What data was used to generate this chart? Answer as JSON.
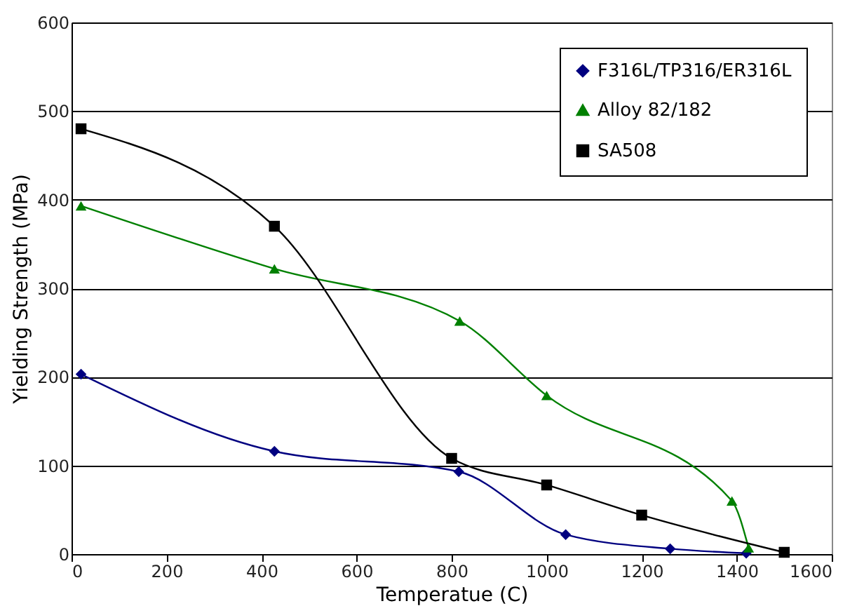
{
  "chart_data": {
    "type": "line",
    "xlabel": "Temperatue (C)",
    "ylabel": "Yielding Strength (MPa)",
    "xlim": [
      0,
      1600
    ],
    "xticks": [
      0,
      200,
      400,
      600,
      800,
      1000,
      1200,
      1400,
      1600
    ],
    "ylim": [
      0,
      600
    ],
    "yticks": [
      0,
      100,
      200,
      300,
      400,
      500,
      600
    ],
    "grid": "y",
    "legend": "top right",
    "line_style": "solid",
    "series": [
      {
        "name": "F316L/TP316/ER316L",
        "color": "#000080",
        "marker": "diamond",
        "x": [
          20,
          427,
          815,
          1040,
          1260,
          1420
        ],
        "values": [
          203,
          116,
          93,
          22,
          6,
          1
        ]
      },
      {
        "name": "Alloy 82/182",
        "color": "#008000",
        "marker": "triangle",
        "x": [
          20,
          427,
          817,
          1000,
          1390,
          1425
        ],
        "values": [
          393,
          322,
          263,
          179,
          60,
          7
        ]
      },
      {
        "name": "SA508",
        "color": "#000000",
        "marker": "square",
        "x": [
          20,
          427,
          800,
          1000,
          1200,
          1500
        ],
        "values": [
          480,
          370,
          108,
          78,
          44,
          2
        ]
      }
    ]
  }
}
